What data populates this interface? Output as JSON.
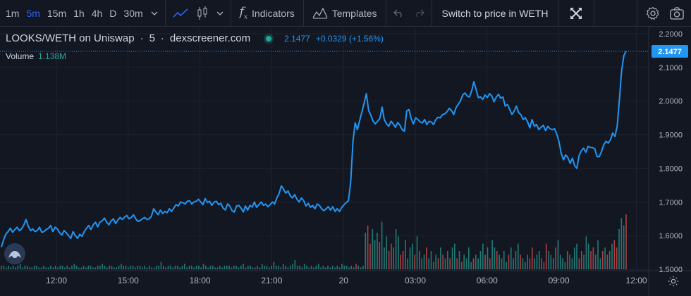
{
  "toolbar": {
    "timeframes": [
      "1m",
      "5m",
      "15m",
      "1h",
      "4h",
      "D",
      "30m"
    ],
    "active_timeframe": "5m",
    "indicators_label": "Indicators",
    "templates_label": "Templates",
    "switch_label": "Switch to price in WETH"
  },
  "legend": {
    "symbol": "LOOKS/WETH on Uniswap",
    "interval": "5",
    "source": "dexscreener.com",
    "price": "2.1477",
    "change": "+0.0329 (+1.56%)",
    "volume_label": "Volume",
    "volume_value": "1.138M"
  },
  "colors": {
    "background": "#131722",
    "line": "#2196f3",
    "grid": "#1f2330",
    "up_volume": "#26a69a",
    "down_volume": "#ef5350",
    "axis_text": "#b2b5be",
    "price_tag": "#2196f3"
  },
  "chart_data": {
    "type": "line",
    "title": "LOOKS/WETH on Uniswap · 5 · dexscreener.com",
    "xlabel": "",
    "ylabel": "",
    "y_ticks": [
      "2.2000",
      "2.1000",
      "2.0000",
      "1.9000",
      "1.8000",
      "1.7000",
      "1.6000",
      "1.5000"
    ],
    "x_ticks": [
      "12:00",
      "15:00",
      "18:00",
      "21:00",
      "20",
      "03:00",
      "06:00",
      "09:00",
      "12:00"
    ],
    "ylim": [
      1.5,
      2.2
    ],
    "last_price": 2.1477,
    "series": [
      {
        "values": [
          1.566,
          1.588,
          1.605,
          1.612,
          1.622,
          1.61,
          1.618,
          1.625,
          1.615,
          1.62,
          1.632,
          1.648,
          1.628,
          1.615,
          1.62,
          1.612,
          1.615,
          1.625,
          1.61,
          1.612,
          1.618,
          1.622,
          1.63,
          1.612,
          1.625,
          1.62,
          1.608,
          1.602,
          1.615,
          1.608,
          1.6,
          1.592,
          1.612,
          1.6,
          1.592,
          1.604,
          1.598,
          1.612,
          1.622,
          1.63,
          1.618,
          1.632,
          1.64,
          1.626,
          1.64,
          1.644,
          1.652,
          1.64,
          1.632,
          1.644,
          1.65,
          1.636,
          1.646,
          1.654,
          1.648,
          1.655,
          1.66,
          1.65,
          1.654,
          1.662,
          1.65,
          1.642,
          1.645,
          1.65,
          1.654,
          1.648,
          1.65,
          1.658,
          1.68,
          1.67,
          1.662,
          1.676,
          1.666,
          1.672,
          1.668,
          1.68,
          1.672,
          1.682,
          1.692,
          1.688,
          1.7,
          1.698,
          1.694,
          1.702,
          1.704,
          1.694,
          1.7,
          1.702,
          1.708,
          1.7,
          1.692,
          1.71,
          1.698,
          1.702,
          1.69,
          1.7,
          1.702,
          1.692,
          1.696,
          1.682,
          1.676,
          1.694,
          1.688,
          1.674,
          1.67,
          1.688,
          1.69,
          1.682,
          1.67,
          1.688,
          1.676,
          1.69,
          1.685,
          1.7,
          1.684,
          1.692,
          1.7,
          1.69,
          1.694,
          1.686,
          1.692,
          1.7,
          1.694,
          1.712,
          1.725,
          1.748,
          1.738,
          1.726,
          1.733,
          1.718,
          1.712,
          1.722,
          1.708,
          1.7,
          1.712,
          1.704,
          1.688,
          1.696,
          1.684,
          1.69,
          1.68,
          1.694,
          1.69,
          1.68,
          1.674,
          1.68,
          1.686,
          1.676,
          1.686,
          1.672,
          1.68,
          1.672,
          1.684,
          1.692,
          1.698,
          1.704,
          1.76,
          1.88,
          1.935,
          1.915,
          1.942,
          1.968,
          1.995,
          2.022,
          1.972,
          1.958,
          1.94,
          1.932,
          1.94,
          1.948,
          1.982,
          1.945,
          1.932,
          1.925,
          1.94,
          1.932,
          1.922,
          1.936,
          1.928,
          1.915,
          1.91,
          1.97,
          1.975,
          1.948,
          1.932,
          1.95,
          1.945,
          1.938,
          1.935,
          1.945,
          1.93,
          1.94,
          1.938,
          1.93,
          1.945,
          1.952,
          1.95,
          1.96,
          1.962,
          1.968,
          1.978,
          1.972,
          1.96,
          1.98,
          1.99,
          2.0,
          2.018,
          2.024,
          2.015,
          2.012,
          2.03,
          2.058,
          2.035,
          2.01,
          2.012,
          2.005,
          2.018,
          2.01,
          2.022,
          2.015,
          1.998,
          2.012,
          2.02,
          2.008,
          2.012,
          1.985,
          1.99,
          1.975,
          1.96,
          1.97,
          1.985,
          1.965,
          1.96,
          1.945,
          1.95,
          1.938,
          1.92,
          1.945,
          1.925,
          1.93,
          1.915,
          1.922,
          1.928,
          1.912,
          1.925,
          1.918,
          1.915,
          1.918,
          1.902,
          1.88,
          1.845,
          1.825,
          1.84,
          1.832,
          1.815,
          1.83,
          1.808,
          1.8,
          1.838,
          1.852,
          1.86,
          1.848,
          1.865,
          1.862,
          1.862,
          1.858,
          1.835,
          1.835,
          1.85,
          1.87,
          1.88,
          1.875,
          1.885,
          1.905,
          1.895,
          1.925,
          2.005,
          2.09,
          2.135,
          2.148
        ]
      }
    ],
    "volume": {
      "values": [
        2,
        2,
        1,
        2,
        1,
        2,
        1,
        2,
        3,
        1,
        2,
        2,
        1,
        1,
        2,
        2,
        1,
        1,
        2,
        1,
        1,
        2,
        1,
        2,
        1,
        2,
        2,
        1,
        2,
        1,
        2,
        3,
        2,
        1,
        1,
        2,
        1,
        2,
        2,
        1,
        1,
        2,
        2,
        3,
        2,
        1,
        2,
        2,
        1,
        1,
        2,
        3,
        2,
        2,
        1,
        2,
        2,
        1,
        2,
        2,
        1,
        2,
        1,
        2,
        1,
        1,
        2,
        2,
        4,
        2,
        1,
        2,
        2,
        1,
        2,
        2,
        1,
        2,
        3,
        1,
        2,
        2,
        1,
        2,
        2,
        1,
        3,
        2,
        1,
        2,
        2,
        1,
        1,
        2,
        1,
        2,
        2,
        2,
        1,
        2,
        2,
        1,
        2,
        3,
        1,
        2,
        2,
        1,
        1,
        2,
        1,
        3,
        2,
        2,
        1,
        2,
        4,
        2,
        2,
        1,
        3,
        2,
        1,
        2,
        3,
        5,
        2,
        2,
        1,
        3,
        2,
        1,
        2,
        1,
        2,
        3,
        1,
        2,
        1,
        2,
        1,
        2,
        1,
        2,
        1,
        3,
        2,
        2,
        1,
        2,
        1,
        3,
        2,
        1,
        2,
        20,
        24,
        14,
        22,
        16,
        20,
        15,
        26,
        12,
        18,
        10,
        14,
        12,
        22,
        18,
        8,
        10,
        16,
        6,
        12,
        14,
        8,
        18,
        10,
        6,
        8,
        12,
        6,
        10,
        4,
        8,
        6,
        12,
        8,
        6,
        10,
        6,
        12,
        14,
        6,
        10,
        4,
        8,
        6,
        12,
        4,
        6,
        8,
        6,
        10,
        14,
        8,
        12,
        6,
        16,
        12,
        10,
        8,
        6,
        10,
        4,
        8,
        12,
        6,
        10,
        14,
        8,
        6,
        4,
        8,
        6,
        12,
        6,
        8,
        10,
        6,
        4,
        14,
        10,
        8,
        6,
        12,
        16,
        8,
        6,
        4,
        10,
        8,
        6,
        12,
        14,
        6,
        10,
        8,
        18,
        14,
        10,
        12,
        8,
        16,
        6,
        10,
        12,
        8,
        10,
        14,
        16,
        12,
        22,
        28,
        24,
        30
      ],
      "down_index_sample": [
        157,
        161,
        165,
        170,
        176,
        188,
        194,
        208,
        225,
        232,
        247,
        252,
        258,
        262,
        268,
        276
      ]
    }
  }
}
